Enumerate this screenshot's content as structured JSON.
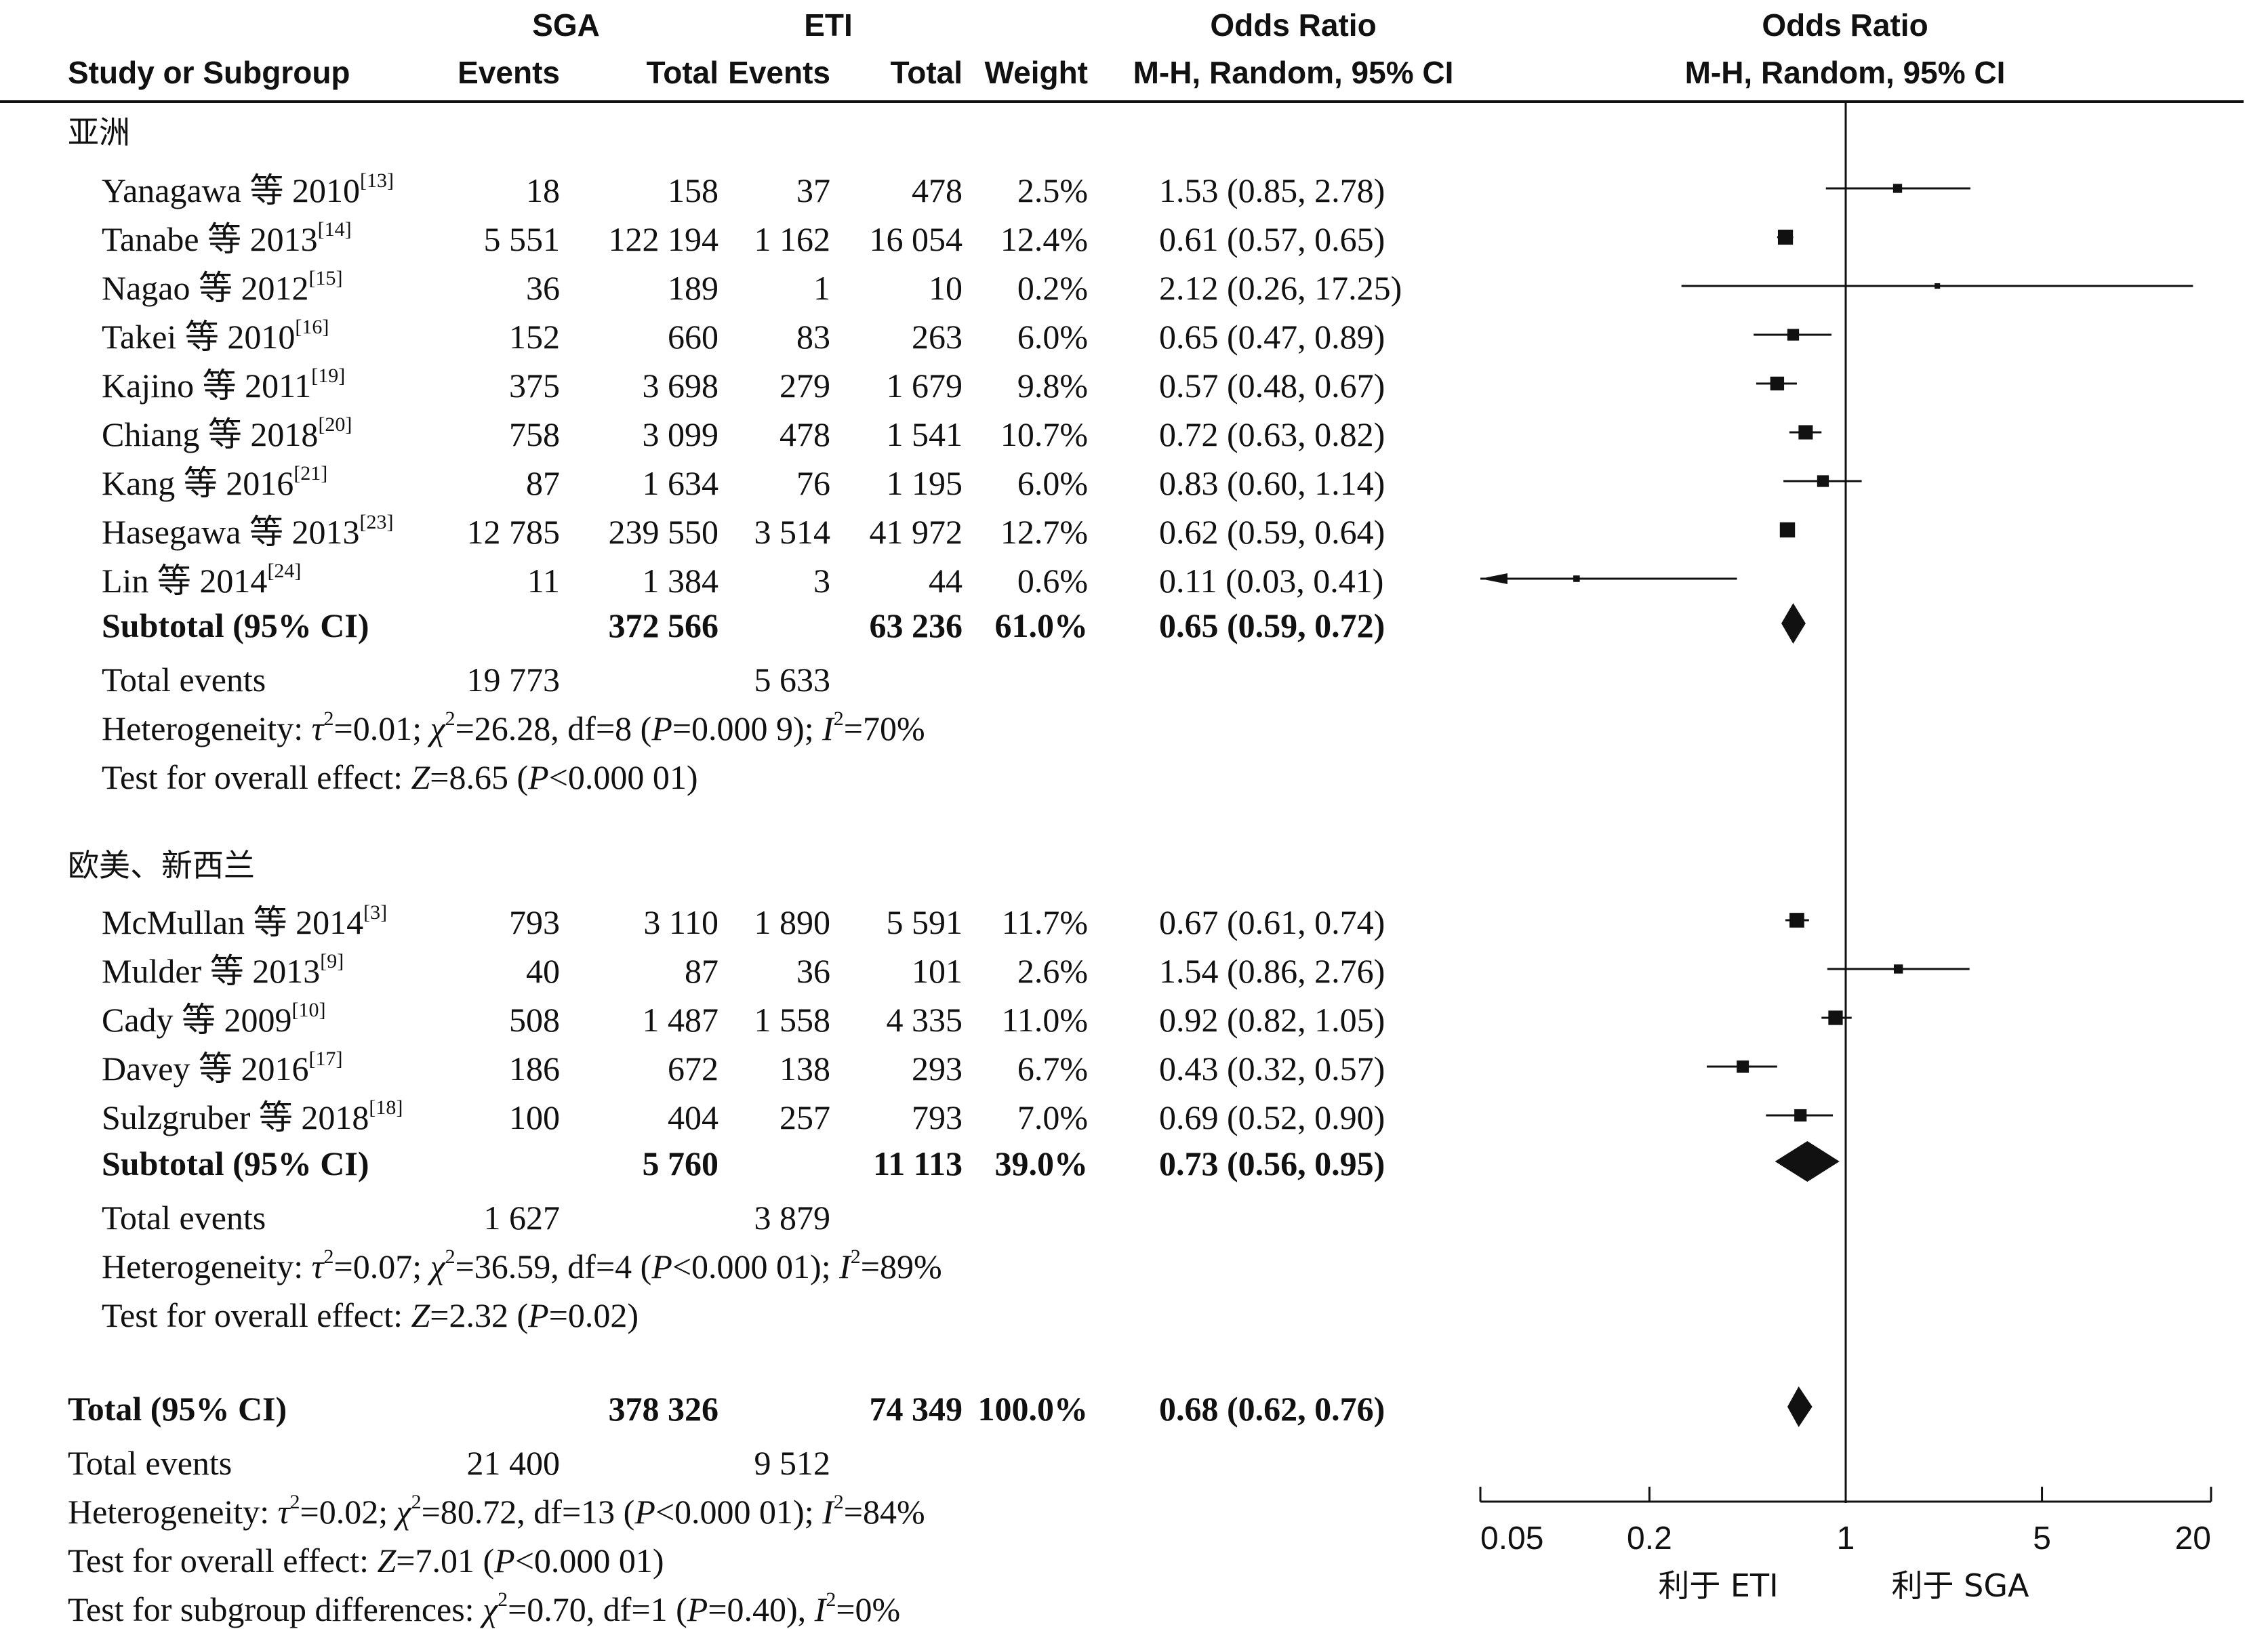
{
  "headers": {
    "study": "Study or Subgroup",
    "sga": "SGA",
    "eti": "ETI",
    "events": "Events",
    "total": "Total",
    "weight": "Weight",
    "or_title": "Odds Ratio",
    "or_method": "M-H, Random, 95% CI"
  },
  "groups": [
    {
      "name": "亚洲",
      "studies": [
        {
          "name": "Yanagawa 等 2010",
          "ref": "[13]",
          "sga_events": "18",
          "sga_total": "158",
          "eti_events": "37",
          "eti_total": "478",
          "weight": "2.5%",
          "ci": "1.53 (0.85, 2.78)"
        },
        {
          "name": "Tanabe 等 2013",
          "ref": "[14]",
          "sga_events": "5 551",
          "sga_total": "122 194",
          "eti_events": "1 162",
          "eti_total": "16 054",
          "weight": "12.4%",
          "ci": "0.61 (0.57, 0.65)"
        },
        {
          "name": "Nagao 等 2012",
          "ref": "[15]",
          "sga_events": "36",
          "sga_total": "189",
          "eti_events": "1",
          "eti_total": "10",
          "weight": "0.2%",
          "ci": "2.12 (0.26, 17.25)"
        },
        {
          "name": "Takei 等 2010",
          "ref": "[16]",
          "sga_events": "152",
          "sga_total": "660",
          "eti_events": "83",
          "eti_total": "263",
          "weight": "6.0%",
          "ci": "0.65 (0.47, 0.89)"
        },
        {
          "name": "Kajino 等 2011",
          "ref": "[19]",
          "sga_events": "375",
          "sga_total": "3 698",
          "eti_events": "279",
          "eti_total": "1 679",
          "weight": "9.8%",
          "ci": "0.57 (0.48, 0.67)"
        },
        {
          "name": "Chiang 等 2018",
          "ref": "[20]",
          "sga_events": "758",
          "sga_total": "3 099",
          "eti_events": "478",
          "eti_total": "1 541",
          "weight": "10.7%",
          "ci": "0.72 (0.63, 0.82)"
        },
        {
          "name": "Kang 等 2016",
          "ref": "[21]",
          "sga_events": "87",
          "sga_total": "1 634",
          "eti_events": "76",
          "eti_total": "1 195",
          "weight": "6.0%",
          "ci": "0.83 (0.60, 1.14)"
        },
        {
          "name": "Hasegawa 等 2013",
          "ref": "[23]",
          "sga_events": "12 785",
          "sga_total": "239 550",
          "eti_events": "3 514",
          "eti_total": "41 972",
          "weight": "12.7%",
          "ci": "0.62 (0.59, 0.64)"
        },
        {
          "name": "Lin 等 2014",
          "ref": "[24]",
          "sga_events": "11",
          "sga_total": "1 384",
          "eti_events": "3",
          "eti_total": "44",
          "weight": "0.6%",
          "ci": "0.11 (0.03, 0.41)"
        }
      ],
      "subtotal": {
        "label": "Subtotal (95% CI)",
        "sga_total": "372 566",
        "eti_total": "63 236",
        "weight": "61.0%",
        "ci": "0.65 (0.59, 0.72)"
      },
      "total_events": {
        "label": "Total events",
        "sga": "19 773",
        "eti": "5 633"
      },
      "heterogeneity": {
        "prefix": "Heterogeneity: ",
        "tau": "τ",
        "tau_val": "=0.01; ",
        "chi": "χ",
        "chi_val": "=26.28, df=8 (",
        "p": "P",
        "p_val": "=0.000 9); ",
        "i": "I",
        "i_val": "=70%"
      },
      "overall": {
        "prefix": "Test for overall effect: ",
        "z": "Z",
        "z_val": "=8.65 (",
        "p": "P",
        "p_val": "<0.000 01)"
      }
    },
    {
      "name": "欧美、新西兰",
      "studies": [
        {
          "name": "McMullan 等 2014",
          "ref": "[3]",
          "sga_events": "793",
          "sga_total": "3 110",
          "eti_events": "1 890",
          "eti_total": "5 591",
          "weight": "11.7%",
          "ci": "0.67 (0.61, 0.74)"
        },
        {
          "name": "Mulder 等 2013",
          "ref": "[9]",
          "sga_events": "40",
          "sga_total": "87",
          "eti_events": "36",
          "eti_total": "101",
          "weight": "2.6%",
          "ci": "1.54 (0.86, 2.76)"
        },
        {
          "name": "Cady 等 2009",
          "ref": "[10]",
          "sga_events": "508",
          "sga_total": "1 487",
          "eti_events": "1 558",
          "eti_total": "4 335",
          "weight": "11.0%",
          "ci": "0.92 (0.82, 1.05)"
        },
        {
          "name": "Davey 等 2016",
          "ref": "[17]",
          "sga_events": "186",
          "sga_total": "672",
          "eti_events": "138",
          "eti_total": "293",
          "weight": "6.7%",
          "ci": "0.43 (0.32, 0.57)"
        },
        {
          "name": "Sulzgruber 等 2018",
          "ref": "[18]",
          "sga_events": "100",
          "sga_total": "404",
          "eti_events": "257",
          "eti_total": "793",
          "weight": "7.0%",
          "ci": "0.69 (0.52, 0.90)"
        }
      ],
      "subtotal": {
        "label": "Subtotal (95% CI)",
        "sga_total": "5 760",
        "eti_total": "11 113",
        "weight": "39.0%",
        "ci": "0.73 (0.56, 0.95)"
      },
      "total_events": {
        "label": "Total events",
        "sga": "1 627",
        "eti": "3 879"
      },
      "heterogeneity": {
        "prefix": "Heterogeneity: ",
        "tau": "τ",
        "tau_val": "=0.07; ",
        "chi": "χ",
        "chi_val": "=36.59, df=4 (",
        "p": "P",
        "p_val": "<0.000 01); ",
        "i": "I",
        "i_val": "=89%"
      },
      "overall": {
        "prefix": "Test for overall effect: ",
        "z": "Z",
        "z_val": "=2.32 (",
        "p": "P",
        "p_val": "=0.02)"
      }
    }
  ],
  "total": {
    "label": "Total (95% CI)",
    "sga_total": "378 326",
    "eti_total": "74 349",
    "weight": "100.0%",
    "ci": "0.68 (0.62, 0.76)",
    "total_events": {
      "label": "Total events",
      "sga": "21 400",
      "eti": "9 512"
    },
    "heterogeneity": {
      "prefix": "Heterogeneity: ",
      "tau": "τ",
      "tau_val": "=0.02; ",
      "chi": "χ",
      "chi_val": "=80.72, df=13 (",
      "p": "P",
      "p_val": "<0.000 01); ",
      "i": "I",
      "i_val": "=84%"
    },
    "overall": {
      "prefix": "Test for overall effect: ",
      "z": "Z",
      "z_val": "=7.01 (",
      "p": "P",
      "p_val": "<0.000 01)"
    },
    "subgroup": {
      "prefix": "Test for subgroup differences: ",
      "chi": "χ",
      "chi_val": "=0.70, df=1 (",
      "p": "P",
      "p_val": "=0.40), ",
      "i": "I",
      "i_val": "=0%"
    }
  },
  "sup2": "2",
  "axis": {
    "ticks": [
      "0.05",
      "0.2",
      "1",
      "5",
      "20"
    ],
    "favours_left": "利于 ETI",
    "favours_right": "利于 SGA"
  },
  "chart_data": {
    "type": "forest",
    "x_scale": "log",
    "xlim": [
      0.05,
      20
    ],
    "reference_line": 1,
    "points": [
      {
        "study": "Yanagawa 等 2010",
        "or": 1.53,
        "lo": 0.85,
        "hi": 2.78,
        "weight": 2.5
      },
      {
        "study": "Tanabe 等 2013",
        "or": 0.61,
        "lo": 0.57,
        "hi": 0.65,
        "weight": 12.4
      },
      {
        "study": "Nagao 等 2012",
        "or": 2.12,
        "lo": 0.26,
        "hi": 17.25,
        "weight": 0.2
      },
      {
        "study": "Takei 等 2010",
        "or": 0.65,
        "lo": 0.47,
        "hi": 0.89,
        "weight": 6.0
      },
      {
        "study": "Kajino 等 2011",
        "or": 0.57,
        "lo": 0.48,
        "hi": 0.67,
        "weight": 9.8
      },
      {
        "study": "Chiang 等 2018",
        "or": 0.72,
        "lo": 0.63,
        "hi": 0.82,
        "weight": 10.7
      },
      {
        "study": "Kang 等 2016",
        "or": 0.83,
        "lo": 0.6,
        "hi": 1.14,
        "weight": 6.0
      },
      {
        "study": "Hasegawa 等 2013",
        "or": 0.62,
        "lo": 0.59,
        "hi": 0.64,
        "weight": 12.7
      },
      {
        "study": "Lin 等 2014",
        "or": 0.11,
        "lo": 0.03,
        "hi": 0.41,
        "weight": 0.6
      },
      {
        "study": "Subtotal 亚洲",
        "or": 0.65,
        "lo": 0.59,
        "hi": 0.72,
        "diamond": true
      },
      {
        "study": "McMullan 等 2014",
        "or": 0.67,
        "lo": 0.61,
        "hi": 0.74,
        "weight": 11.7
      },
      {
        "study": "Mulder 等 2013",
        "or": 1.54,
        "lo": 0.86,
        "hi": 2.76,
        "weight": 2.6
      },
      {
        "study": "Cady 等 2009",
        "or": 0.92,
        "lo": 0.82,
        "hi": 1.05,
        "weight": 11.0
      },
      {
        "study": "Davey 等 2016",
        "or": 0.43,
        "lo": 0.32,
        "hi": 0.57,
        "weight": 6.7
      },
      {
        "study": "Sulzgruber 等 2018",
        "or": 0.69,
        "lo": 0.52,
        "hi": 0.9,
        "weight": 7.0
      },
      {
        "study": "Subtotal 欧美、新西兰",
        "or": 0.73,
        "lo": 0.56,
        "hi": 0.95,
        "diamond": true
      },
      {
        "study": "Total",
        "or": 0.68,
        "lo": 0.62,
        "hi": 0.76,
        "diamond": true
      }
    ]
  }
}
